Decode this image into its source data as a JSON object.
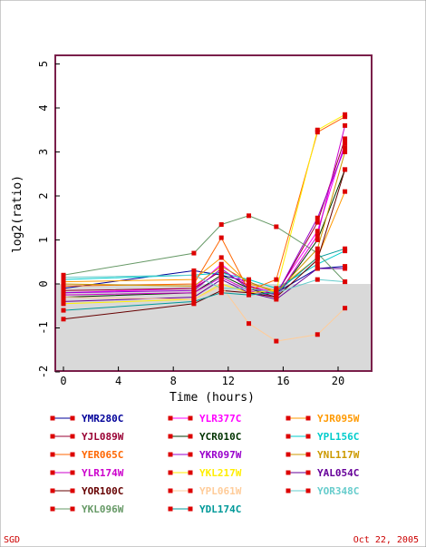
{
  "chart_data": {
    "type": "line",
    "xlabel": "Time (hours)",
    "ylabel": "log2(ratio)",
    "xlim": [
      -1,
      22
    ],
    "ylim": [
      -2,
      5
    ],
    "x_ticks": [
      "0",
      "4",
      "8",
      "12",
      "16",
      "20"
    ],
    "y_ticks": [
      "-2",
      "-1",
      "0",
      "1",
      "2",
      "3",
      "4",
      "5"
    ],
    "negative_region_shaded": true,
    "plot_border_color": "#7a1f4a",
    "marker_color": "#dd0000",
    "x": [
      0,
      9.5,
      11.5,
      13.5,
      15.5,
      18.5,
      20.5
    ],
    "series": [
      {
        "name": "YMR280C",
        "color": "#000099",
        "values": [
          -0.1,
          0.3,
          0.2,
          0.05,
          -0.2,
          0.35,
          0.4
        ]
      },
      {
        "name": "YLR377C",
        "color": "#ff00ff",
        "values": [
          -0.2,
          -0.1,
          0.45,
          -0.05,
          -0.2,
          1.2,
          3.2
        ]
      },
      {
        "name": "YJR095W",
        "color": "#ff9900",
        "values": [
          0.05,
          0.1,
          0.6,
          0.0,
          -0.15,
          0.6,
          2.1
        ]
      },
      {
        "name": "YJL089W",
        "color": "#990033",
        "values": [
          -0.15,
          -0.1,
          0.3,
          -0.05,
          -0.25,
          1.4,
          3.3
        ]
      },
      {
        "name": "YCR010C",
        "color": "#003300",
        "values": [
          -0.3,
          -0.2,
          0.2,
          -0.1,
          -0.3,
          1.0,
          2.6
        ]
      },
      {
        "name": "YPL156C",
        "color": "#00cccc",
        "values": [
          0.1,
          0.2,
          0.25,
          0.1,
          -0.1,
          0.45,
          0.75
        ]
      },
      {
        "name": "YER065C",
        "color": "#ff6600",
        "values": [
          -0.05,
          0.0,
          1.05,
          -0.15,
          0.1,
          3.45,
          3.8
        ]
      },
      {
        "name": "YKR097W",
        "color": "#9900cc",
        "values": [
          -0.2,
          -0.15,
          0.35,
          -0.1,
          -0.25,
          1.5,
          3.1
        ]
      },
      {
        "name": "YNL117W",
        "color": "#cc9900",
        "values": [
          0.0,
          -0.05,
          0.4,
          0.05,
          -0.2,
          0.8,
          3.0
        ]
      },
      {
        "name": "YLR174W",
        "color": "#cc00cc",
        "values": [
          -0.25,
          -0.2,
          0.15,
          -0.15,
          -0.3,
          1.1,
          3.6
        ]
      },
      {
        "name": "YKL217W",
        "color": "#ffee00",
        "values": [
          -0.45,
          -0.35,
          0.0,
          -0.2,
          -0.15,
          3.5,
          3.85
        ]
      },
      {
        "name": "YAL054C",
        "color": "#660099",
        "values": [
          -0.4,
          -0.3,
          0.1,
          -0.2,
          -0.35,
          0.35,
          0.35
        ]
      },
      {
        "name": "YOR100C",
        "color": "#660000",
        "values": [
          -0.8,
          -0.45,
          -0.15,
          -0.2,
          -0.3,
          0.55,
          2.6
        ]
      },
      {
        "name": "YPL061W",
        "color": "#ffcc99",
        "values": [
          -0.3,
          -0.35,
          -0.05,
          -0.9,
          -1.3,
          -1.15,
          -0.55
        ]
      },
      {
        "name": "YOR348C",
        "color": "#66cccc",
        "values": [
          0.15,
          0.2,
          -0.1,
          -0.1,
          -0.2,
          0.1,
          0.05
        ]
      },
      {
        "name": "YKL096W",
        "color": "#669966",
        "values": [
          0.2,
          0.7,
          1.35,
          1.55,
          1.3,
          0.7,
          0.05
        ]
      },
      {
        "name": "YDL174C",
        "color": "#009999",
        "values": [
          -0.6,
          -0.4,
          -0.2,
          -0.25,
          -0.2,
          0.6,
          0.8
        ]
      }
    ]
  },
  "footer": {
    "source": "SGD",
    "date": "Oct 22, 2005"
  }
}
